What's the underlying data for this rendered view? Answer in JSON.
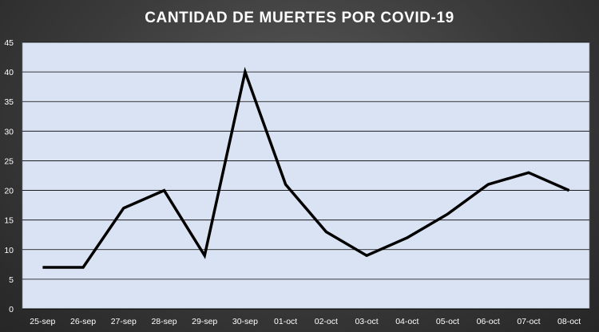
{
  "chart_data": {
    "type": "line",
    "title": "CANTIDAD DE MUERTES POR COVID-19",
    "xlabel": "",
    "ylabel": "",
    "categories": [
      "25-sep",
      "26-sep",
      "27-sep",
      "28-sep",
      "29-sep",
      "30-sep",
      "01-oct",
      "02-oct",
      "03-oct",
      "04-oct",
      "05-oct",
      "06-oct",
      "07-oct",
      "08-oct"
    ],
    "series": [
      {
        "values": [
          7,
          7,
          17,
          20,
          9,
          40,
          21,
          13,
          9,
          12,
          16,
          21,
          23,
          20
        ]
      }
    ],
    "ylim": [
      0,
      45
    ],
    "yticks": [
      0,
      5,
      10,
      15,
      20,
      25,
      30,
      35,
      40,
      45
    ],
    "grid": true,
    "legend": "none",
    "colors": {
      "plot_background": "#dae3f3",
      "line": "#000000",
      "gridline": "#000000",
      "page_background": "#3a3a3a",
      "text": "#ffffff"
    }
  }
}
